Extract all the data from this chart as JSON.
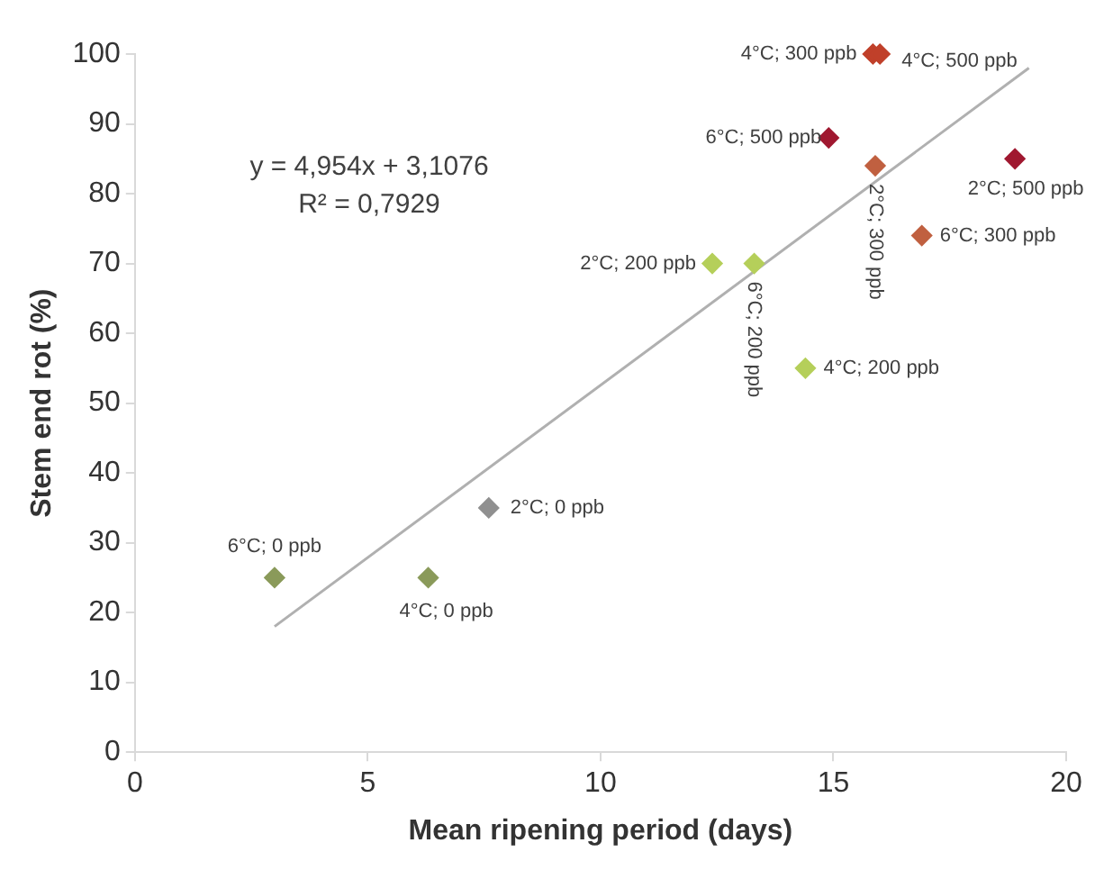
{
  "chart_data": {
    "type": "scatter",
    "xlabel": "Mean ripening period (days)",
    "ylabel": "Stem end rot (%)",
    "xlim": [
      0,
      20
    ],
    "xticks": [
      0,
      5,
      10,
      15,
      20
    ],
    "ylim": [
      0,
      100
    ],
    "yticks": [
      0,
      10,
      20,
      30,
      40,
      50,
      60,
      70,
      80,
      90,
      100
    ],
    "grid": false,
    "legend": false,
    "marker": "diamond",
    "series": [
      {
        "type": "scatter",
        "x": [
          3,
          6.3,
          7.6,
          12.4,
          13.3,
          14.4,
          15.85,
          16,
          14.9,
          15.9,
          18.9,
          16.9
        ],
        "values": [
          25,
          25,
          35,
          70,
          70,
          55,
          100,
          100,
          88,
          84,
          85,
          74
        ],
        "colors": [
          "#8a9a5a",
          "#8a9a5a",
          "#909090",
          "#b5cf5a",
          "#b5cf5a",
          "#b5cf5a",
          "#c0402a",
          "#c0402a",
          "#a01830",
          "#c06040",
          "#a01830",
          "#c06040"
        ]
      },
      {
        "type": "line",
        "x": [
          3,
          19.2
        ],
        "values": [
          18,
          98
        ],
        "color": "#b0b0b0",
        "marker": "none"
      }
    ],
    "annotations": [
      "y = 4,954x + 3,1076",
      "R² = 0,7929",
      {
        "text": "6°C; 0 ppb",
        "x": 3,
        "y": 25
      },
      {
        "text": "4°C; 0 ppb",
        "x": 6.3,
        "y": 25
      },
      {
        "text": "2°C; 0 ppb",
        "x": 7.6,
        "y": 35
      },
      {
        "text": "2°C; 200 ppb",
        "x": 12.4,
        "y": 70
      },
      {
        "text": "6°C; 200 ppb",
        "x": 13.3,
        "y": 70
      },
      {
        "text": "4°C; 200 ppb",
        "x": 14.4,
        "y": 55
      },
      {
        "text": "4°C; 300 ppb",
        "x": 15.85,
        "y": 100
      },
      {
        "text": "4°C; 500 ppb",
        "x": 16,
        "y": 100
      },
      {
        "text": "6°C; 500 ppb",
        "x": 14.9,
        "y": 88
      },
      {
        "text": "2°C; 300 ppb",
        "x": 15.9,
        "y": 84
      },
      {
        "text": "2°C; 500 ppb",
        "x": 18.9,
        "y": 85
      },
      {
        "text": "6°C; 300 ppb",
        "x": 16.9,
        "y": 74
      }
    ]
  }
}
